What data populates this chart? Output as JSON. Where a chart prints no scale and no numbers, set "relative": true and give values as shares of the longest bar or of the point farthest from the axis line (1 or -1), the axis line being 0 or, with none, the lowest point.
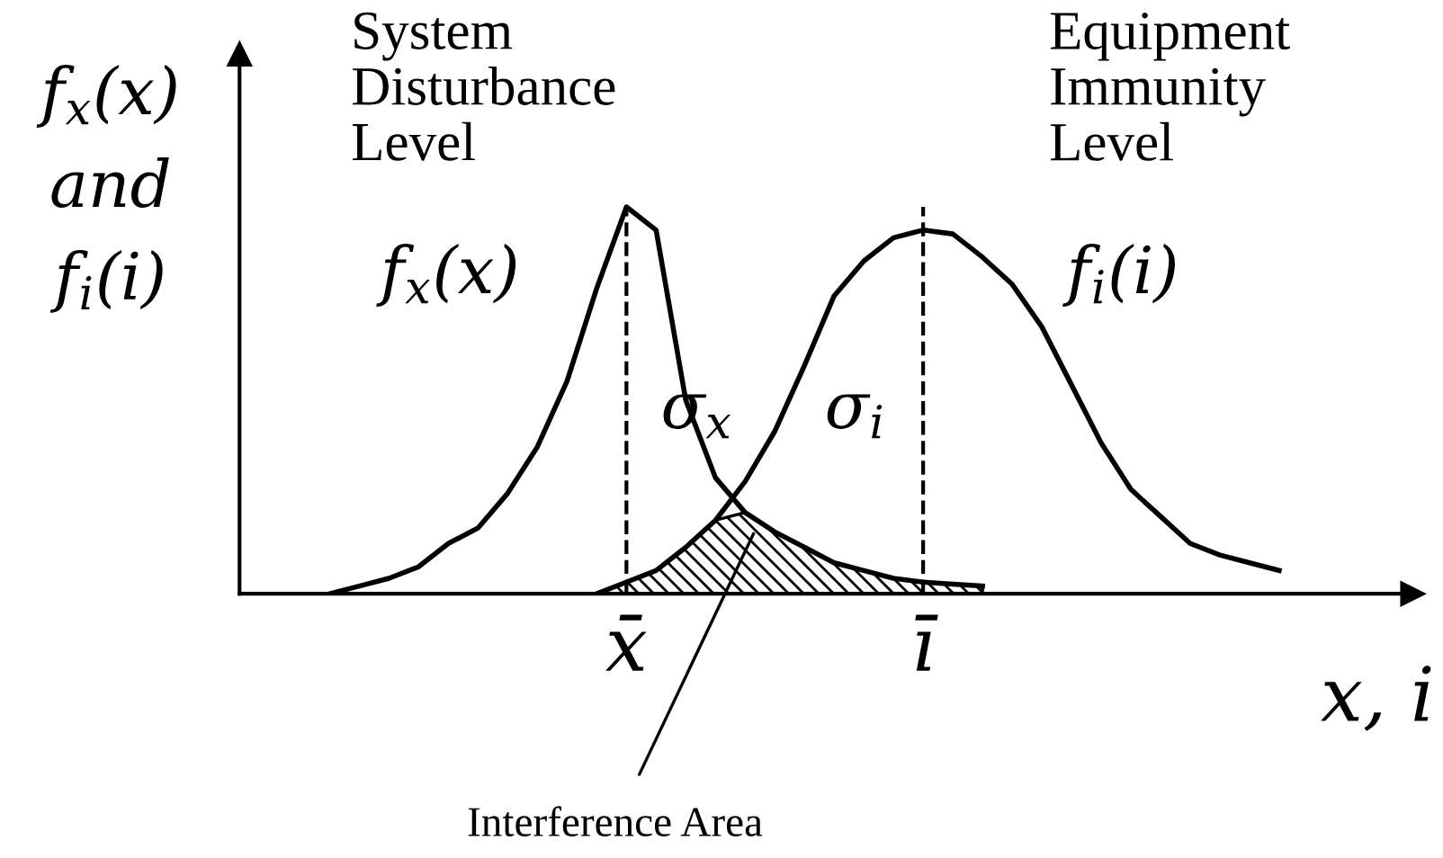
{
  "chart_data": {
    "type": "line",
    "relative": true,
    "xlabel": "x, i",
    "ylabel": "f$_{x}$(x)\nand\nf$_{i}$(i)",
    "categories": [
      null,
      null,
      null,
      null,
      null,
      null,
      null,
      null,
      null,
      null,
      null,
      null,
      null,
      "x̄",
      null,
      null,
      null,
      null,
      null,
      null,
      null,
      null,
      null,
      "ī",
      null,
      null,
      null,
      null,
      null,
      null,
      null,
      null,
      null,
      null,
      null,
      null,
      null,
      null,
      null,
      null
    ],
    "tick_labels": "x",
    "grid": false,
    "legend": false,
    "marker": "none",
    "ref_lines": [
      {
        "axis": "x",
        "value": "x̄",
        "line_style": "dashed",
        "color": "#000000"
      },
      {
        "axis": "x",
        "value": "ī",
        "line_style": "dashed",
        "color": "#000000"
      }
    ],
    "series": [
      {
        "color": "#000000",
        "line_style": "solid",
        "values": [
          null,
          null,
          null,
          0,
          0.02,
          0.04,
          0.07,
          0.13,
          0.17,
          0.26,
          0.38,
          0.55,
          0.79,
          1,
          0.94,
          0.5,
          0.3,
          0.21,
          0.16,
          0.12,
          0.08,
          0.06,
          0.04,
          0.03,
          0.025,
          0.02,
          null,
          null,
          null,
          null,
          null,
          null,
          null,
          null,
          null,
          null,
          null,
          null,
          null,
          null
        ]
      },
      {
        "color": "#000000",
        "line_style": "solid",
        "values": [
          null,
          null,
          null,
          null,
          null,
          null,
          null,
          null,
          null,
          null,
          null,
          null,
          0,
          0.03,
          0.06,
          0.12,
          0.19,
          0.29,
          0.42,
          0.59,
          0.77,
          0.86,
          0.92,
          0.94,
          0.93,
          0.87,
          0.8,
          0.69,
          0.54,
          0.39,
          0.27,
          0.2,
          0.13,
          0.1,
          0.08,
          0.06,
          null,
          null,
          null,
          null
        ]
      },
      {
        "type": "area",
        "color": "#000000",
        "values": [
          null,
          null,
          null,
          null,
          null,
          null,
          null,
          null,
          null,
          null,
          null,
          null,
          0,
          0.03,
          0.06,
          0.12,
          0.19,
          0.21,
          0.16,
          0.12,
          0.08,
          0.06,
          0.04,
          0.03,
          0.025,
          0.02,
          null,
          null,
          null,
          null,
          null,
          null,
          null,
          null,
          null,
          null,
          null,
          null,
          null,
          null
        ]
      }
    ],
    "annotations": [
      "System\nDisturbance\nLevel",
      "f$_{x}$(x)",
      "Equipment\nImmunity\nLevel",
      "f$_{i}$(i)",
      "σ$_{x}$",
      "σ$_{i}$",
      "Interference Area"
    ]
  }
}
